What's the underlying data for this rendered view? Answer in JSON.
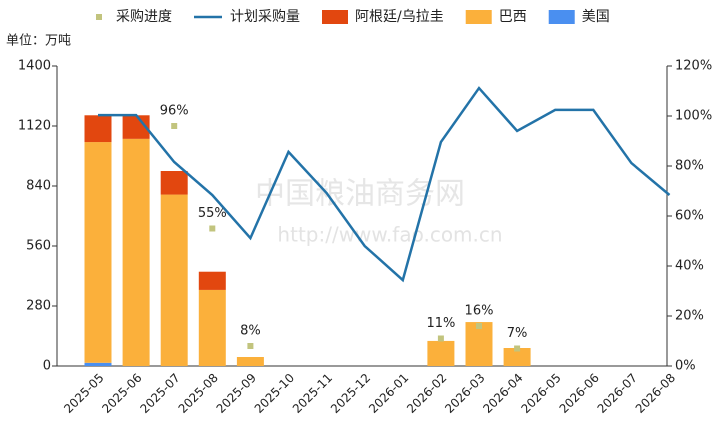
{
  "chart_data": {
    "type": "combo",
    "unit_label": "单位：万吨",
    "watermark": [
      "中国粮油商务网",
      "http://www.fao.com.cn"
    ],
    "categories": [
      "2025-05",
      "2025-06",
      "2025-07",
      "2025-08",
      "2025-09",
      "2025-10",
      "2025-11",
      "2025-12",
      "2026-01",
      "2026-02",
      "2026-03",
      "2026-04",
      "2026-05",
      "2026-06",
      "2026-07",
      "2026-08"
    ],
    "series": [
      {
        "name": "采购进度",
        "type": "scatter",
        "axis": "y2",
        "color": "#c2c47e",
        "values": [
          null,
          null,
          96,
          55,
          8,
          null,
          null,
          null,
          null,
          11,
          16,
          7,
          null,
          null,
          null,
          null
        ],
        "value_labels": [
          null,
          null,
          "96%",
          "55%",
          "8%",
          null,
          null,
          null,
          null,
          "11%",
          "16%",
          "7%",
          null,
          null,
          null,
          null
        ]
      },
      {
        "name": "计划采购量",
        "type": "line",
        "color": "#2373a8",
        "values": [
          1171,
          1171,
          952,
          798,
          597,
          999,
          807,
          560,
          401,
          1045,
          1297,
          1097,
          1195,
          1195,
          947,
          798
        ]
      },
      {
        "name": "阿根廷/乌拉圭",
        "type": "bar",
        "color": "#e2470f",
        "values": [
          125,
          110,
          110,
          85,
          null,
          null,
          null,
          null,
          null,
          null,
          null,
          null,
          null,
          null,
          null,
          null
        ]
      },
      {
        "name": "巴西",
        "type": "bar",
        "color": "#fbb03b",
        "values": [
          1030,
          1060,
          800,
          355,
          42,
          null,
          null,
          null,
          null,
          117,
          205,
          84,
          null,
          null,
          null,
          null
        ]
      },
      {
        "name": "美国",
        "type": "bar",
        "color": "#4a8ff0",
        "values": [
          15,
          null,
          null,
          null,
          null,
          null,
          null,
          null,
          null,
          null,
          null,
          null,
          null,
          null,
          null,
          null
        ]
      }
    ],
    "ylim": [
      0,
      1400
    ],
    "yticks": [
      0,
      280,
      560,
      840,
      1120,
      1400
    ],
    "y2lim": [
      0,
      120
    ],
    "y2ticks": [
      {
        "value": 0,
        "label": "0%"
      },
      {
        "value": 20,
        "label": "20%"
      },
      {
        "value": 40,
        "label": "40%"
      },
      {
        "value": 60,
        "label": "60%"
      },
      {
        "value": 80,
        "label": "80%"
      },
      {
        "value": 100,
        "label": "100%"
      },
      {
        "value": 120,
        "label": "120%"
      }
    ],
    "legend": "top"
  }
}
